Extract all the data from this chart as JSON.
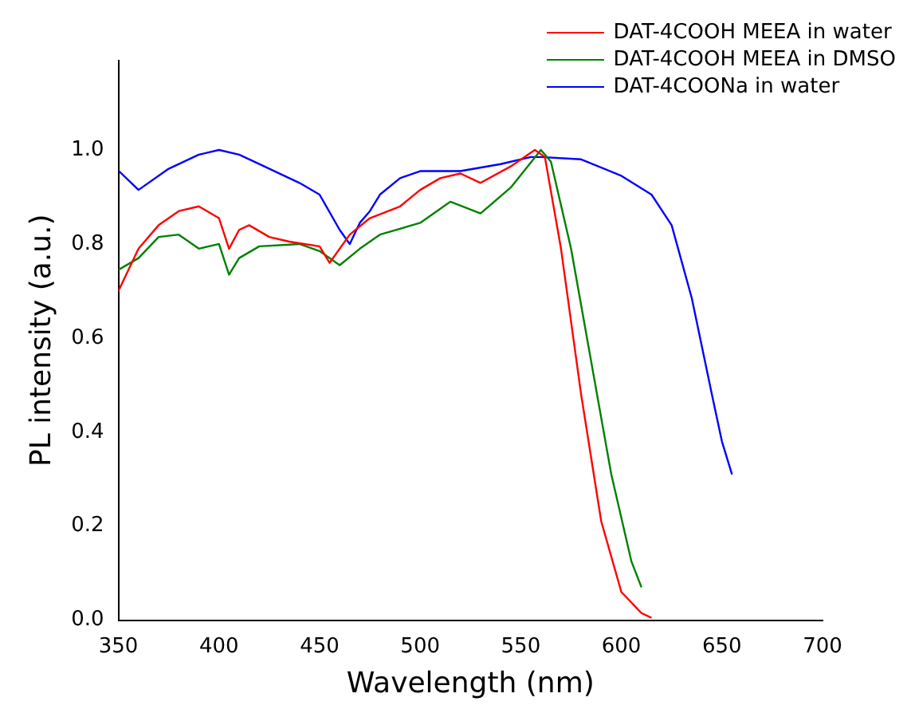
{
  "chart_data": {
    "type": "line",
    "xlabel": "Wavelength (nm)",
    "ylabel": "PL intensity (a.u.)",
    "xlim": [
      350,
      700
    ],
    "xticks": [
      350,
      400,
      450,
      500,
      550,
      600,
      650,
      700
    ],
    "ylim": [
      0,
      1.19
    ],
    "yticks": [
      {
        "value": 0,
        "label": "0.0"
      },
      {
        "value": 0.2,
        "label": "0.2"
      },
      {
        "value": 0.4,
        "label": "0.4"
      },
      {
        "value": 0.6,
        "label": "0.6"
      },
      {
        "value": 0.8,
        "label": "0.8"
      },
      {
        "value": 1,
        "label": "1.0"
      }
    ],
    "grid": false,
    "legend": "top right",
    "marker": "none",
    "line_style": "solid",
    "series": [
      {
        "name": "DAT-4COOH MEEA in water",
        "color": "#ff0000",
        "x": [
          350,
          360,
          370,
          380,
          390,
          400,
          405,
          410,
          415,
          425,
          435,
          450,
          455,
          465,
          475,
          490,
          500,
          510,
          520,
          530,
          545,
          557,
          562,
          570,
          580,
          590,
          600,
          610,
          615
        ],
        "values": [
          0.7,
          0.79,
          0.84,
          0.87,
          0.88,
          0.855,
          0.79,
          0.83,
          0.84,
          0.815,
          0.805,
          0.795,
          0.76,
          0.82,
          0.855,
          0.88,
          0.915,
          0.94,
          0.95,
          0.93,
          0.965,
          1.0,
          0.985,
          0.79,
          0.48,
          0.21,
          0.06,
          0.015,
          0.005
        ]
      },
      {
        "name": "DAT-4COOH MEEA in DMSO",
        "color": "#008000",
        "x": [
          350,
          360,
          370,
          380,
          390,
          400,
          405,
          410,
          420,
          440,
          450,
          460,
          470,
          480,
          500,
          515,
          530,
          545,
          560,
          565,
          575,
          585,
          595,
          605,
          610
        ],
        "values": [
          0.745,
          0.77,
          0.815,
          0.82,
          0.79,
          0.8,
          0.735,
          0.77,
          0.795,
          0.8,
          0.785,
          0.755,
          0.79,
          0.82,
          0.845,
          0.89,
          0.865,
          0.92,
          1.0,
          0.975,
          0.79,
          0.55,
          0.31,
          0.125,
          0.07
        ]
      },
      {
        "name": "DAT-4COONa in water",
        "color": "#0000ff",
        "x": [
          350,
          360,
          375,
          390,
          400,
          410,
          420,
          440,
          450,
          460,
          465,
          470,
          475,
          480,
          490,
          500,
          520,
          540,
          555,
          560,
          580,
          600,
          615,
          625,
          635,
          645,
          650,
          655
        ],
        "values": [
          0.956,
          0.915,
          0.96,
          0.99,
          1.0,
          0.99,
          0.97,
          0.93,
          0.905,
          0.83,
          0.8,
          0.845,
          0.87,
          0.905,
          0.94,
          0.955,
          0.955,
          0.97,
          0.985,
          0.985,
          0.98,
          0.945,
          0.905,
          0.84,
          0.685,
          0.48,
          0.38,
          0.31
        ]
      }
    ]
  }
}
